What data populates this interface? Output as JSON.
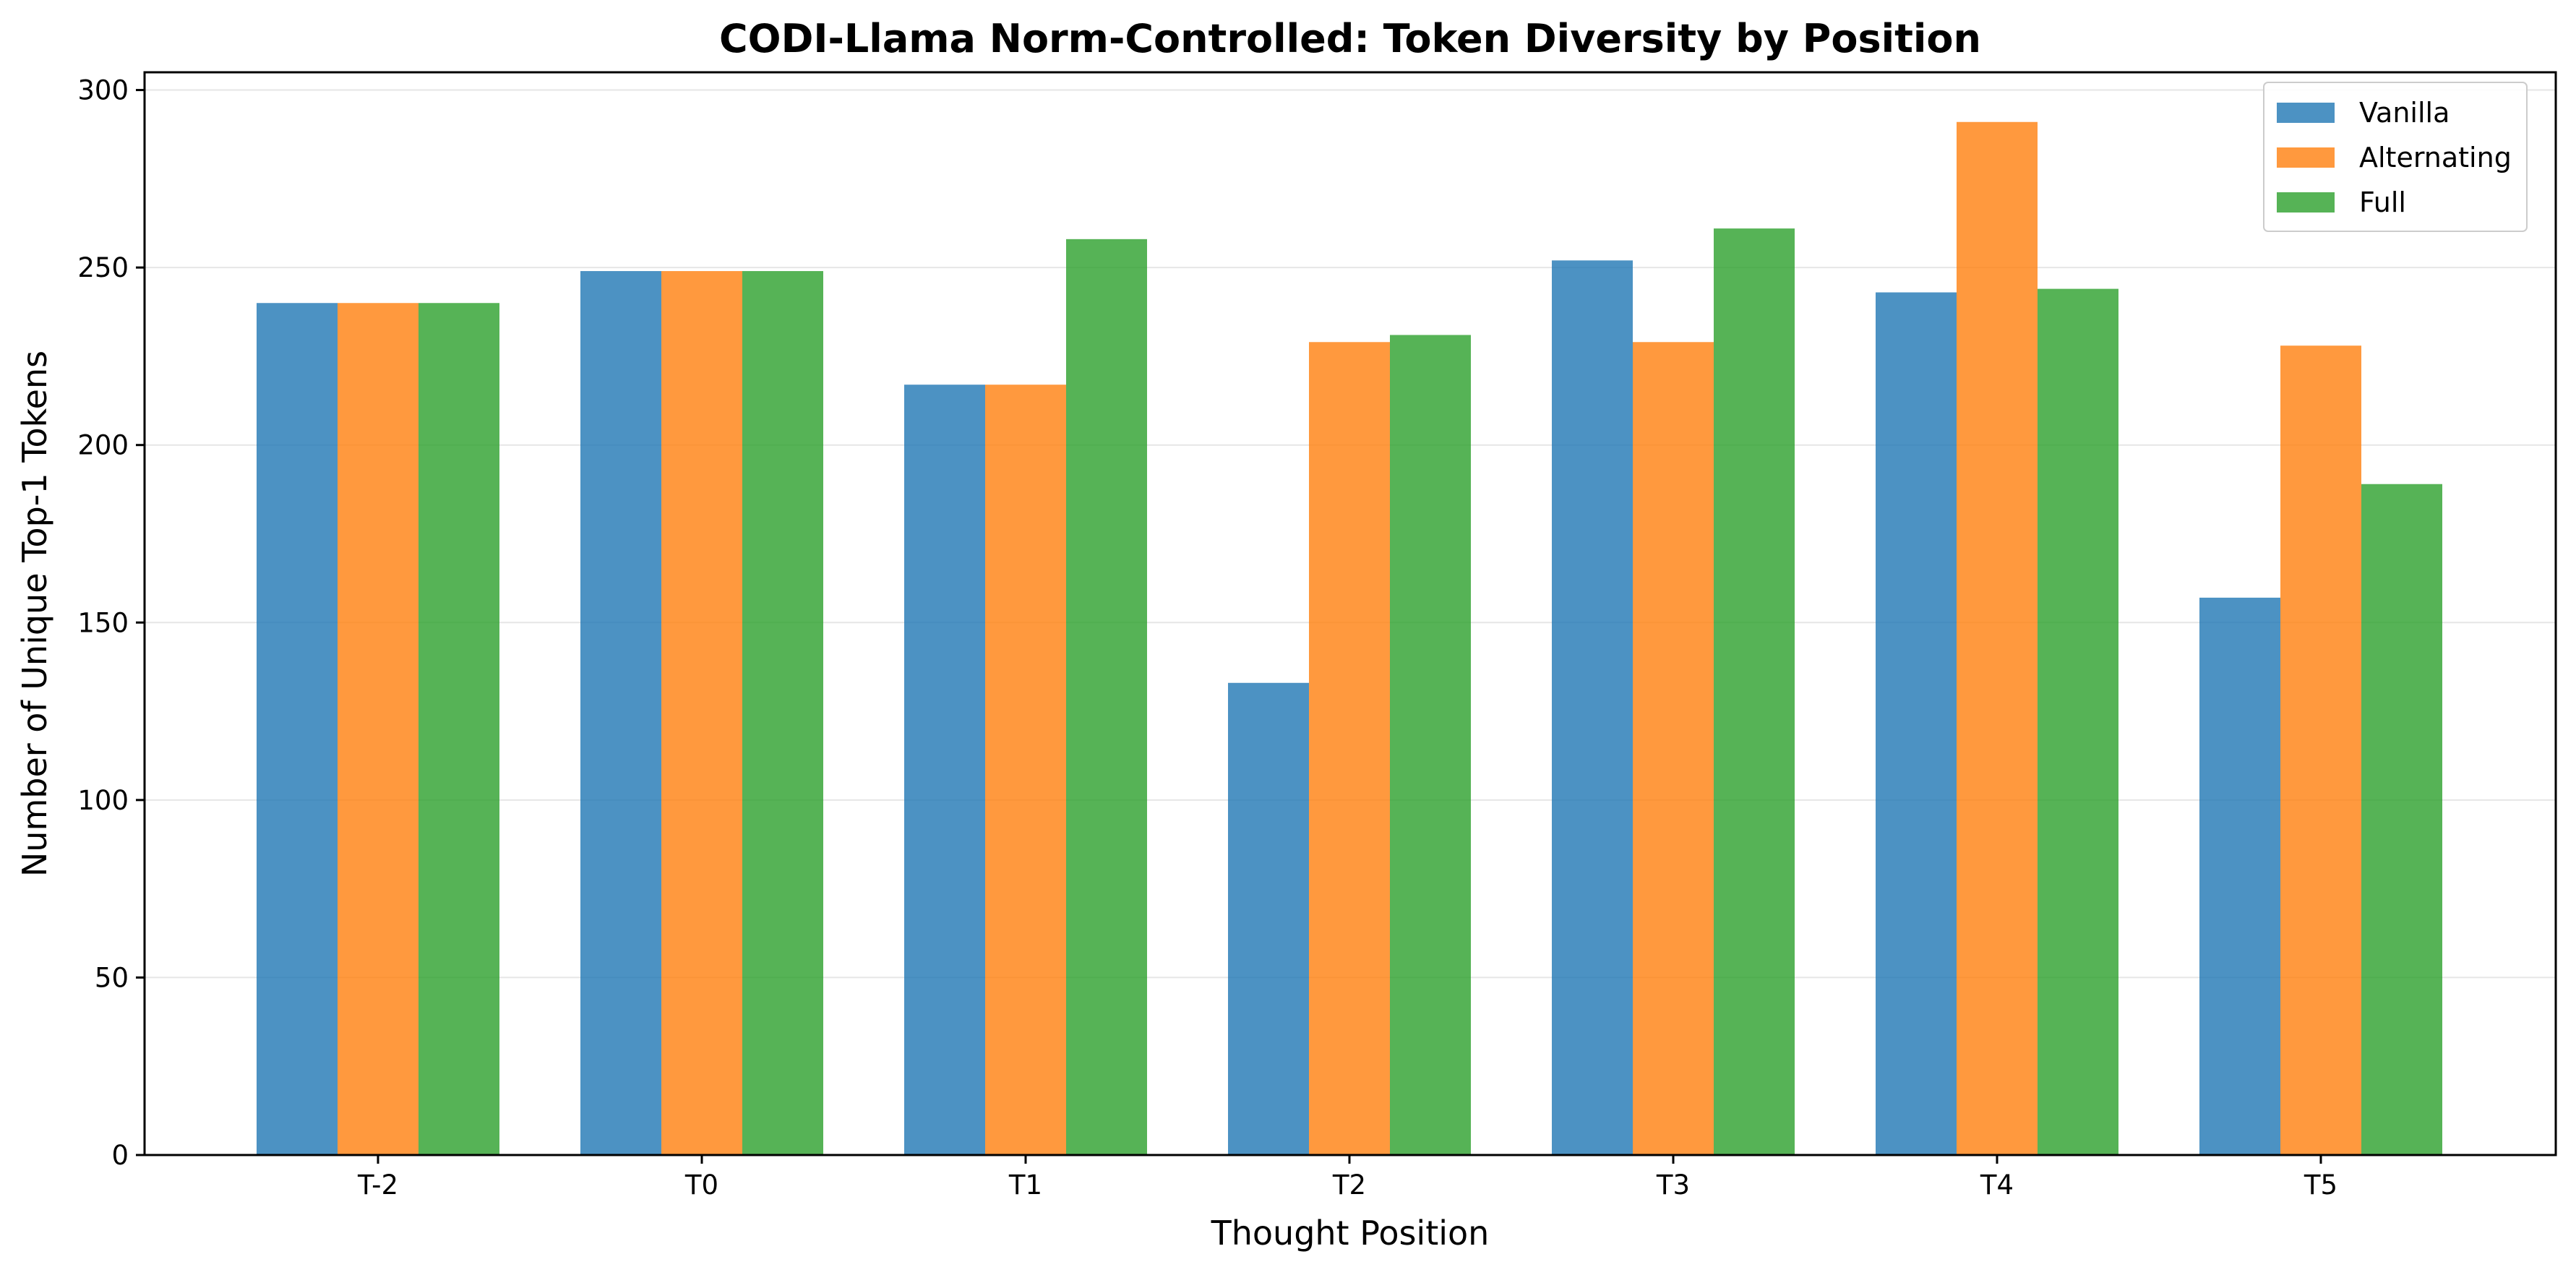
{
  "chart_data": {
    "type": "bar",
    "title": "CODI-Llama Norm-Controlled: Token Diversity by Position",
    "xlabel": "Thought Position",
    "ylabel": "Number of Unique Top-1 Tokens",
    "categories": [
      "T-2",
      "T0",
      "T1",
      "T2",
      "T3",
      "T4",
      "T5"
    ],
    "series": [
      {
        "name": "Vanilla",
        "color": "#1f77b4",
        "values": [
          240,
          249,
          217,
          133,
          252,
          243,
          157
        ]
      },
      {
        "name": "Alternating",
        "color": "#ff7f0e",
        "values": [
          240,
          249,
          217,
          229,
          229,
          291,
          228
        ]
      },
      {
        "name": "Full",
        "color": "#2ca02c",
        "values": [
          240,
          249,
          258,
          231,
          261,
          244,
          189
        ]
      }
    ],
    "ylim": [
      0,
      305
    ],
    "yticks": [
      0,
      50,
      100,
      150,
      200,
      250,
      300
    ],
    "grid": "horizontal",
    "legend_position": "top-right"
  }
}
